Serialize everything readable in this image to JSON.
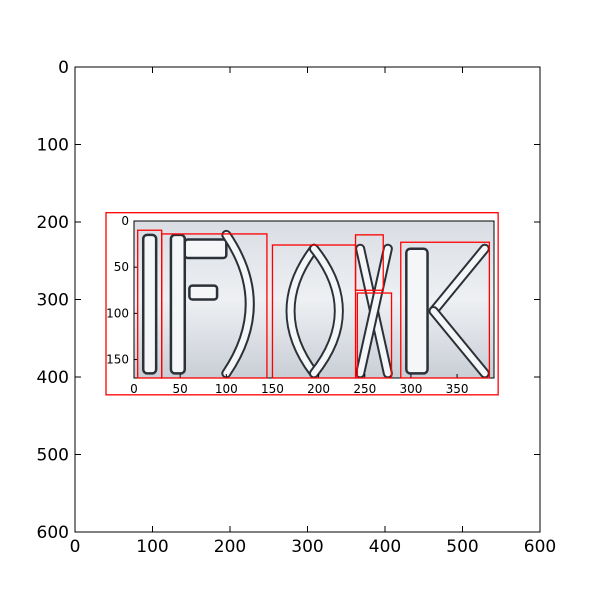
{
  "chart_data": {
    "type": "image-annotation",
    "title": "",
    "xlabel": "",
    "ylabel": "",
    "xlim": [
      0,
      600
    ],
    "ylim": [
      600,
      0
    ],
    "x_ticks": [
      "0",
      "100",
      "200",
      "300",
      "400",
      "500",
      "600"
    ],
    "y_ticks": [
      "0",
      "100",
      "200",
      "300",
      "400",
      "500",
      "600"
    ],
    "outer_box": {
      "x0": 40,
      "y0": 188,
      "x1": 546,
      "y1": 423,
      "color": "#ff0000"
    },
    "inset": {
      "image": "carved stone inscription (grayscale relief)",
      "x_ticks": [
        "0",
        "50",
        "100",
        "150",
        "200",
        "250",
        "300",
        "350"
      ],
      "y_ticks": [
        "0",
        "50",
        "100",
        "150"
      ],
      "xlim": [
        0,
        390
      ],
      "ylim": [
        170,
        0
      ],
      "boxes": [
        {
          "x0": 4,
          "y0": 10,
          "x1": 30,
          "y1": 170
        },
        {
          "x0": 30,
          "y0": 14,
          "x1": 144,
          "y1": 170
        },
        {
          "x0": 150,
          "y0": 26,
          "x1": 240,
          "y1": 170
        },
        {
          "x0": 240,
          "y0": 15,
          "x1": 270,
          "y1": 75
        },
        {
          "x0": 242,
          "y0": 78,
          "x1": 279,
          "y1": 170
        },
        {
          "x0": 289,
          "y0": 23,
          "x1": 385,
          "y1": 170
        }
      ],
      "box_color": "#ff0000"
    }
  }
}
